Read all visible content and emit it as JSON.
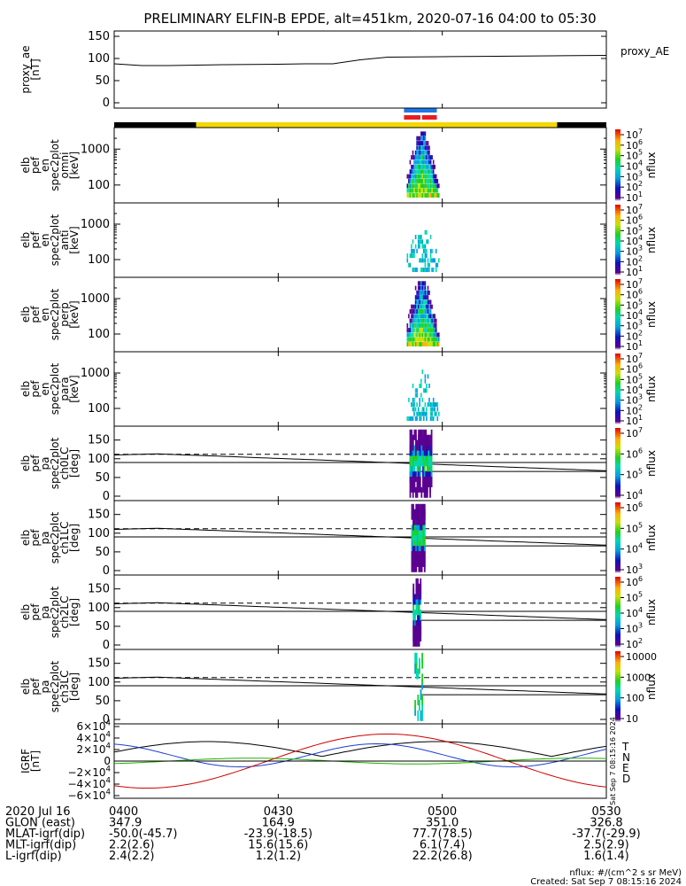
{
  "chart_data": {
    "type": "spectrogram",
    "title": "PRELIMINARY ELFIN-B EPDE, alt=451km, 2020-07-16 04:00 to 05:30",
    "time_range": [
      "04:00",
      "05:30"
    ],
    "x_ticks": [
      "0400",
      "0430",
      "0500",
      "0530"
    ],
    "panels": [
      {
        "id": "proxy_ae",
        "kind": "line",
        "ylabel": [
          "proxy_ae",
          "[nT]"
        ],
        "ylim": [
          0,
          150
        ],
        "yticks": [
          "150",
          "100",
          "50",
          "0"
        ],
        "right_label": "proxy_AE",
        "series": {
          "x_min": [
            0,
            5,
            10,
            20,
            30,
            35,
            40,
            45,
            50,
            60,
            70,
            80,
            90
          ],
          "y": [
            88,
            84,
            84,
            86,
            87,
            88,
            88,
            97,
            103,
            104,
            105,
            106,
            107
          ]
        }
      },
      {
        "id": "omni",
        "kind": "energy_spectrogram",
        "ylabel": [
          "elb",
          "pef",
          "en",
          "spec2plot",
          "omni",
          "[keV]"
        ],
        "yticks": [
          "1000",
          "100"
        ],
        "cbar_ticks": [
          "10^7",
          "10^6",
          "10^5",
          "10^4",
          "10^3",
          "10^2",
          "10^1"
        ],
        "cbar_label": "nflux"
      },
      {
        "id": "anti",
        "kind": "energy_spectrogram",
        "ylabel": [
          "elb",
          "pef",
          "en",
          "spec2plot",
          "anti",
          "[keV]"
        ],
        "yticks": [
          "1000",
          "100"
        ],
        "cbar_ticks": [
          "10^7",
          "10^6",
          "10^5",
          "10^4",
          "10^3",
          "10^2",
          "10^1"
        ],
        "cbar_label": "nflux"
      },
      {
        "id": "perp",
        "kind": "energy_spectrogram",
        "ylabel": [
          "elb",
          "pef",
          "en",
          "spec2plot",
          "perp",
          "[keV]"
        ],
        "yticks": [
          "1000",
          "100"
        ],
        "cbar_ticks": [
          "10^7",
          "10^6",
          "10^5",
          "10^4",
          "10^3",
          "10^2",
          "10^1"
        ],
        "cbar_label": "nflux"
      },
      {
        "id": "para",
        "kind": "energy_spectrogram",
        "ylabel": [
          "elb",
          "pef",
          "en",
          "spec2plot",
          "para",
          "[keV]"
        ],
        "yticks": [
          "1000",
          "100"
        ],
        "cbar_ticks": [
          "10^7",
          "10^6",
          "10^5",
          "10^4",
          "10^3",
          "10^2",
          "10^1"
        ],
        "cbar_label": "nflux"
      },
      {
        "id": "ch0LC",
        "kind": "pitch_angle_spectrogram",
        "ylabel": [
          "elb",
          "pef",
          "pa",
          "spec2plot",
          "ch0LC",
          "[deg]"
        ],
        "ylim": [
          0,
          180
        ],
        "yticks": [
          "150",
          "100",
          "50",
          "0"
        ],
        "cbar_ticks": [
          "10^7",
          "10^6",
          "10^5",
          "10^4"
        ],
        "cbar_label": "nflux"
      },
      {
        "id": "ch1LC",
        "kind": "pitch_angle_spectrogram",
        "ylabel": [
          "elb",
          "pef",
          "pa",
          "spec2plot",
          "ch1LC",
          "[deg]"
        ],
        "ylim": [
          0,
          180
        ],
        "yticks": [
          "150",
          "100",
          "50",
          "0"
        ],
        "cbar_ticks": [
          "10^6",
          "10^5",
          "10^4",
          "10^3"
        ],
        "cbar_label": "nflux"
      },
      {
        "id": "ch2LC",
        "kind": "pitch_angle_spectrogram",
        "ylabel": [
          "elb",
          "pef",
          "pa",
          "spec2plot",
          "ch2LC",
          "[deg]"
        ],
        "ylim": [
          0,
          180
        ],
        "yticks": [
          "150",
          "100",
          "50",
          "0"
        ],
        "cbar_ticks": [
          "10^6",
          "10^5",
          "10^4",
          "10^3",
          "10^2"
        ],
        "cbar_label": "nflux"
      },
      {
        "id": "ch3LC",
        "kind": "pitch_angle_spectrogram",
        "ylabel": [
          "elb",
          "pef",
          "pa",
          "spec2plot",
          "ch3LC",
          "[deg]"
        ],
        "ylim": [
          0,
          180
        ],
        "yticks": [
          "150",
          "100",
          "50",
          "0"
        ],
        "cbar_ticks": [
          "10000",
          "1000",
          "100",
          "10"
        ],
        "cbar_label": "nflux"
      },
      {
        "id": "igrf",
        "kind": "line",
        "ylabel": [
          "IGRF",
          "[nT]"
        ],
        "ylim": [
          -60000,
          60000
        ],
        "yticks": [
          "6×10^4",
          "4×10^4",
          "2×10^4",
          "0",
          "−2×10^4",
          "−4×10^4",
          "−6×10^4"
        ],
        "legend": [
          "T",
          "N",
          "E",
          "D"
        ],
        "legend_colors": [
          "#000000",
          "#1a3fd1",
          "#22b000",
          "#d10000"
        ],
        "side_note": "Sat Sep  7 08:15:16 2024"
      }
    ],
    "orbit_table": {
      "rows": [
        {
          "label": "2020 Jul 16",
          "values": [
            "0400",
            "0430",
            "0500",
            "0530"
          ]
        },
        {
          "label": "GLON (east)",
          "values": [
            "347.9",
            "164.9",
            "351.0",
            "326.8"
          ]
        },
        {
          "label": "MLAT-igrf(dip)",
          "values": [
            "-50.0(-45.7)",
            "-23.9(-18.5)",
            "77.7(78.5)",
            "-37.7(-29.9)"
          ]
        },
        {
          "label": "MLT-igrf(dip)",
          "values": [
            "2.2(2.6)",
            "15.6(15.6)",
            "6.1(7.4)",
            "2.5(2.9)"
          ]
        },
        {
          "label": "L-igrf(dip)",
          "values": [
            "2.4(2.2)",
            "1.2(1.2)",
            "22.2(26.8)",
            "1.6(1.4)"
          ]
        }
      ]
    },
    "footer": {
      "units": "nflux: #/(cm^2 s sr MeV)",
      "created": "Created: Sat Sep  7 08:15:16 2024"
    },
    "colors": {
      "bar_dark": "#000000",
      "bar_yellow": "#f5d800",
      "blue_marker": "#1e78e8",
      "red_marker": "#e81e1e"
    }
  }
}
